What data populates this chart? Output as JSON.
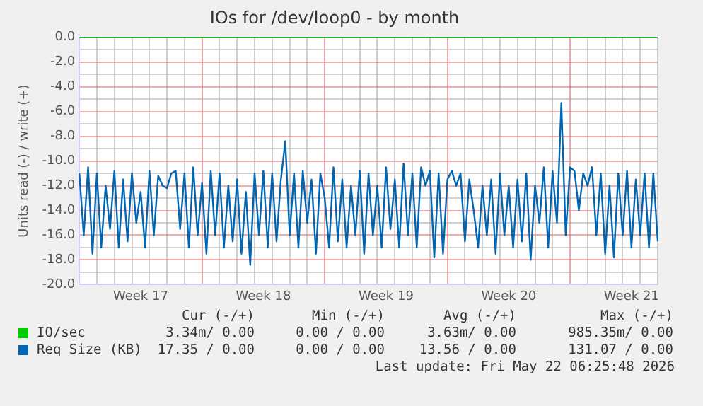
{
  "chart_data": {
    "type": "line",
    "title": "IOs for /dev/loop0 - by month",
    "ylabel": "Units read (-) / write (+)",
    "categories": [
      null,
      null,
      null,
      null,
      null,
      null,
      null,
      null,
      null,
      null,
      null,
      null,
      null,
      null,
      "Week 17",
      null,
      null,
      null,
      null,
      null,
      null,
      null,
      null,
      null,
      null,
      null,
      null,
      null,
      null,
      null,
      null,
      null,
      null,
      null,
      null,
      null,
      null,
      null,
      null,
      null,
      null,
      null,
      "Week 18",
      null,
      null,
      null,
      null,
      null,
      null,
      null,
      null,
      null,
      null,
      null,
      null,
      null,
      null,
      null,
      null,
      null,
      null,
      null,
      null,
      null,
      null,
      null,
      null,
      null,
      null,
      null,
      "Week 19",
      null,
      null,
      null,
      null,
      null,
      null,
      null,
      null,
      null,
      null,
      null,
      null,
      null,
      null,
      null,
      null,
      null,
      null,
      null,
      null,
      null,
      null,
      null,
      null,
      null,
      null,
      null,
      "Week 20",
      null,
      null,
      null,
      null,
      null,
      null,
      null,
      null,
      null,
      null,
      null,
      null,
      null,
      null,
      null,
      null,
      null,
      null,
      null,
      null,
      null,
      null,
      null,
      null,
      null,
      null,
      null,
      "Week 21",
      null,
      null,
      null,
      null,
      null,
      null
    ],
    "ylim": [
      -20,
      0
    ],
    "yticks": [
      {
        "value": -20,
        "label": "-20.0"
      },
      {
        "value": -19,
        "label": null
      },
      {
        "value": -18,
        "label": "-18.0"
      },
      {
        "value": -17,
        "label": null
      },
      {
        "value": -16,
        "label": "-16.0"
      },
      {
        "value": -15,
        "label": null
      },
      {
        "value": -14,
        "label": "-14.0"
      },
      {
        "value": -13,
        "label": null
      },
      {
        "value": -12,
        "label": "-12.0"
      },
      {
        "value": -11,
        "label": null
      },
      {
        "value": -10,
        "label": "-10.0"
      },
      {
        "value": -9,
        "label": null
      },
      {
        "value": -8,
        "label": "-8.0"
      },
      {
        "value": -7,
        "label": null
      },
      {
        "value": -6,
        "label": "-6.0"
      },
      {
        "value": -5,
        "label": null
      },
      {
        "value": -4,
        "label": "-4.0"
      },
      {
        "value": -3,
        "label": null
      },
      {
        "value": -2,
        "label": "-2.0"
      },
      {
        "value": -1,
        "label": null
      },
      {
        "value": 0,
        "label": "0.0"
      }
    ],
    "grid": true,
    "legend": "bottom",
    "marker": "none",
    "line_style": "solid",
    "series": [
      {
        "name": "IO/sec",
        "color": "#00cc00",
        "values": [
          0,
          0,
          0,
          0,
          0,
          0,
          0,
          0,
          0,
          0,
          0,
          0,
          0,
          0,
          0,
          0,
          0,
          0,
          0,
          0,
          0,
          0,
          0,
          0,
          0,
          0,
          0,
          0,
          0,
          0,
          0,
          0,
          0,
          0,
          0,
          0,
          0,
          0,
          0,
          0,
          0,
          0,
          0,
          0,
          0,
          0,
          0,
          0,
          0,
          0,
          0,
          0,
          0,
          0,
          0,
          0,
          0,
          0,
          0,
          0,
          0,
          0,
          0,
          0,
          0,
          0,
          0,
          0,
          0,
          0,
          0,
          0,
          0,
          0,
          0,
          0,
          0,
          0,
          0,
          0,
          0,
          0,
          0,
          0,
          0,
          0,
          0,
          0,
          0,
          0,
          0,
          0,
          0,
          0,
          0,
          0,
          0,
          0,
          0,
          0,
          0,
          0,
          0,
          0,
          0,
          0,
          0,
          0,
          0,
          0,
          0,
          0,
          0,
          0,
          0,
          0,
          0,
          0,
          0,
          0,
          0,
          0,
          0,
          0,
          0,
          0,
          0,
          0,
          0,
          0,
          0,
          0,
          0
        ]
      },
      {
        "name": "Req Size (KB)",
        "color": "#0066b3",
        "values": [
          -11,
          -16,
          -10.5,
          -17.5,
          -11,
          -17,
          -12,
          -15.5,
          -10.8,
          -17,
          -11.5,
          -16.5,
          -11,
          -15,
          -12.5,
          -17,
          -10.8,
          -16,
          -11.2,
          -12,
          -12.2,
          -11,
          -10.8,
          -15.5,
          -11,
          -17,
          -10.5,
          -16,
          -11.8,
          -17.5,
          -10.8,
          -16,
          -11,
          -17,
          -12,
          -16.5,
          -11.5,
          -17.5,
          -12.5,
          -18.4,
          -11,
          -16,
          -10.8,
          -17,
          -11,
          -16.5,
          -11.5,
          -8.4,
          -16,
          -11,
          -17,
          -10.8,
          -15,
          -11.5,
          -17.5,
          -11,
          -13,
          -17,
          -10.5,
          -16.5,
          -11.5,
          -17,
          -12,
          -16,
          -10.8,
          -17.5,
          -11,
          -16,
          -12,
          -17,
          -10.5,
          -15.5,
          -11.5,
          -17,
          -10.2,
          -16,
          -11,
          -17,
          -10.5,
          -12,
          -10.8,
          -17.8,
          -11,
          -17.5,
          -11.5,
          -10.8,
          -12,
          -11,
          -16.5,
          -11.5,
          -14,
          -17,
          -12,
          -16,
          -11.5,
          -17.5,
          -11,
          -16,
          -12,
          -17,
          -11.5,
          -16.5,
          -11,
          -18,
          -12,
          -15,
          -10.5,
          -17,
          -10.8,
          -15,
          -5.3,
          -16,
          -10.5,
          -10.8,
          -14,
          -11,
          -12,
          -10.5,
          -16,
          -11,
          -17.5,
          -12,
          -17.8,
          -11,
          -16,
          -10.8,
          -17,
          -11.5,
          -16,
          -11,
          -17,
          -11,
          -16.5
        ]
      }
    ],
    "annotations": [
      "Cur (-/+)",
      "Min (-/+)",
      "Avg (-/+)",
      "Max (-/+)",
      "3.34m/ 0.00",
      "0.00 / 0.00",
      "3.63m/ 0.00",
      "985.35m/ 0.00",
      "17.35 / 0.00",
      "0.00 / 0.00",
      "13.56 / 0.00",
      "131.07 / 0.00",
      "Last update: Fri May 22 06:25:48 2026"
    ]
  }
}
